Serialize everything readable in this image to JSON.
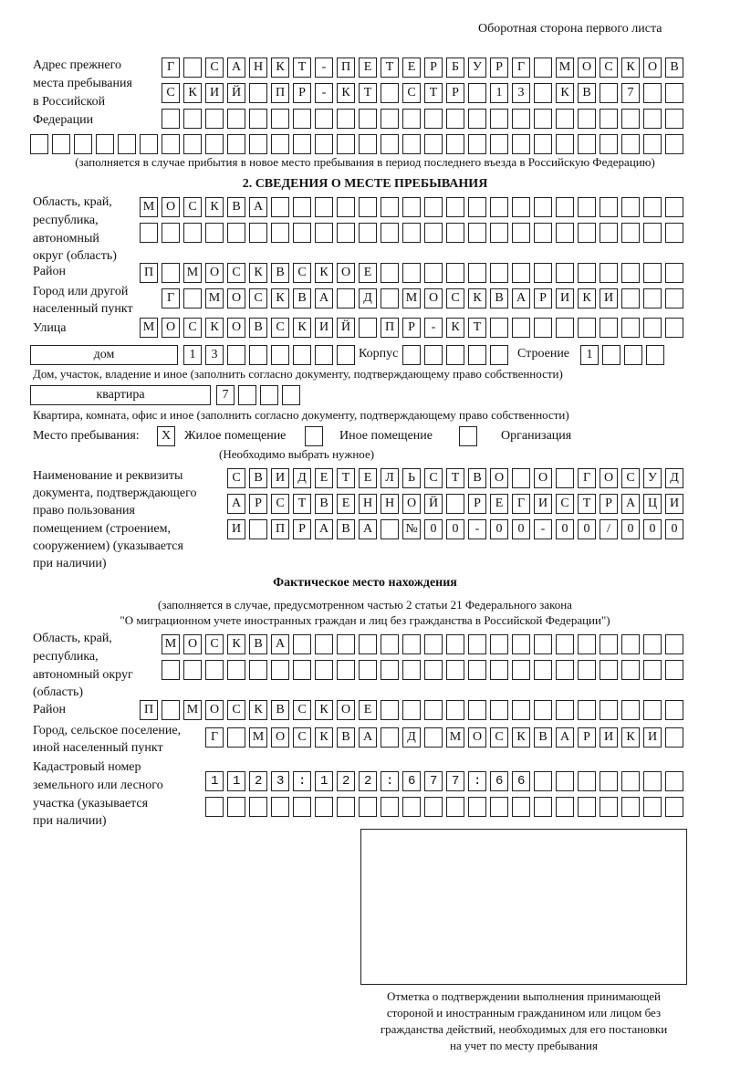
{
  "header": {
    "page_side": "Оборотная сторона первого листа"
  },
  "previous_address": {
    "label": [
      "Адрес прежнего",
      "места пребывания",
      "в Российской",
      "Федерации"
    ],
    "rows": [
      "Г_САНКТ-ПЕТЕРБУРГ_МОСКОВ",
      "СКИЙ_ПР-КТ_СТР_13_КВ_7",
      "",
      ""
    ],
    "note": "(заполняется в случае прибытия в новое место пребывания в период последнего въезда в Российскую Федерацию)"
  },
  "section2": {
    "title": "2. СВЕДЕНИЯ О МЕСТЕ ПРЕБЫВАНИЯ",
    "region_label": [
      "Область, край,",
      "республика,",
      "автономный",
      "округ (область)"
    ],
    "region_rows": [
      "МОСКВА",
      ""
    ],
    "district_label": "Район",
    "district": "П_МОСКВСКОЕ",
    "city_label": [
      "Город или другой",
      "населенный пункт"
    ],
    "city": "Г_МОСКВА_Д_МОСКВАРИКИ",
    "street_label": "Улица",
    "street": "МОСКОВСКИЙ_ПР-КТ",
    "house_type": "дом",
    "house_number": "13",
    "korpus_label": "Корпус",
    "korpus": "",
    "building_label": "Строение",
    "building": "1",
    "house_note": "Дом, участок, владение и иное (заполнить согласно документу, подтверждающему право собственности)",
    "apt_type": "квартира",
    "apt_number": "7",
    "apt_note": "Квартира, комната, офис и иное (заполнить согласно документу, подтверждающему право собственности)",
    "stay_place_label": "Место пребывания:",
    "options": [
      {
        "label": "Жилое помещение",
        "mark": "X"
      },
      {
        "label": "Иное помещение",
        "mark": ""
      },
      {
        "label": "Организация",
        "mark": ""
      }
    ],
    "choose_note": "(Необходимо выбрать нужное)",
    "doc_label": [
      "Наименование и реквизиты",
      "документа, подтверждающего",
      "право пользования",
      "помещением (строением,",
      "сооружением) (указывается",
      "при наличии)"
    ],
    "doc_rows": [
      "СВИДЕТЕЛЬСТВО_О_ГОСУД",
      "АРСТВЕННОЙ_РЕГИСТРАЦИ",
      "И_ПРАВА_№00-00-00/000"
    ]
  },
  "actual": {
    "title": "Фактическое место нахождения",
    "note": [
      "(заполняется в случае, предусмотренном частью 2 статьи 21 Федерального закона",
      "\"О миграционном учете иностранных граждан и лиц без гражданства в Российской Федерации\")"
    ],
    "region_label": [
      "Область, край,",
      "республика,",
      "автономный округ",
      "(область)"
    ],
    "region_rows": [
      "МОСКВА",
      ""
    ],
    "district_label": "Район",
    "district": "П_МОСКВСКОЕ",
    "city_label": [
      "Город, сельское поселение,",
      "иной населенный пункт"
    ],
    "city": "Г_МОСКВА_Д_МОСКВАРИКИ",
    "cadastral_label": [
      "Кадастровый номер",
      "земельного или лесного",
      "участка (указывается",
      "при наличии)"
    ],
    "cadastral_rows": [
      "1123:122:677:66",
      ""
    ]
  },
  "stamp": {
    "caption": [
      "Отметка о подтверждении выполнения принимающей",
      "стороной и иностранным гражданином или лицом без",
      "гражданства действий, необходимых для его постановки",
      "на учет по месту пребывания"
    ]
  }
}
